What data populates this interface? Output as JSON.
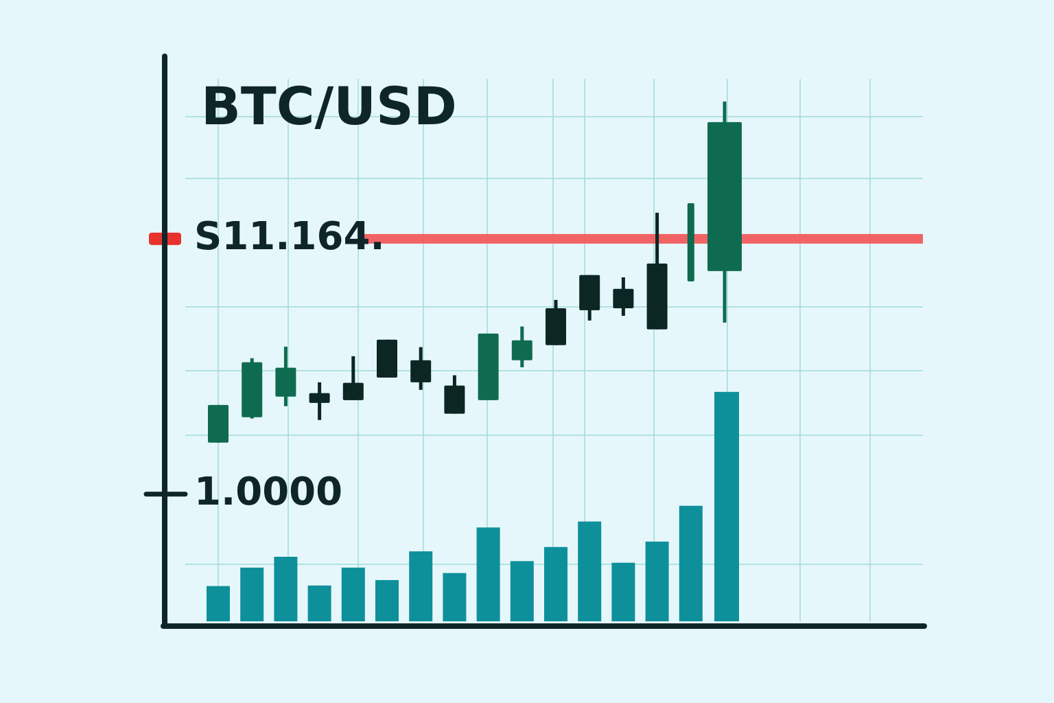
{
  "chart_data": {
    "type": "candlestick",
    "title": "BTC/USD",
    "categories": [
      null,
      null,
      null,
      null,
      null,
      null,
      null,
      null,
      null,
      null,
      null,
      null,
      null,
      null,
      null,
      null
    ],
    "series": [
      {
        "open": [
          3.05,
          4.06,
          4.88,
          5.02,
          5.43,
          7.15,
          6.33,
          5.32,
          4.74,
          6.33,
          8.4,
          9.72,
          9.17,
          10.18,
          9.47,
          9.88
        ],
        "high": [
          4.55,
          6.41,
          6.87,
          5.45,
          6.49,
          7.15,
          6.85,
          5.73,
          7.39,
          7.67,
          8.73,
          9.72,
          9.63,
          12.2,
          12.58,
          16.63
        ],
        "low": [
          3.05,
          4.01,
          4.5,
          3.95,
          4.74,
          5.64,
          5.15,
          4.2,
          4.74,
          6.05,
          6.93,
          7.91,
          8.1,
          7.56,
          9.47,
          7.83
        ],
        "close": [
          4.55,
          6.25,
          6.03,
          4.63,
          4.74,
          5.64,
          5.45,
          4.2,
          7.39,
          7.12,
          6.93,
          8.32,
          8.4,
          7.56,
          12.58,
          15.81
        ],
        "up_color": "#0f6b4f",
        "down_color": "#0b2623"
      },
      {
        "type": "bar",
        "axis": "y2",
        "color": "#0e909b",
        "values": [
          0.65,
          0.99,
          1.19,
          0.66,
          0.99,
          0.76,
          1.29,
          0.89,
          1.73,
          1.11,
          1.37,
          1.84,
          1.08,
          1.47,
          2.13,
          4.23
        ]
      }
    ],
    "ylim": [
      -4.2,
      17.5
    ],
    "yticks": [
      {
        "value": 11.164,
        "label": "S11.164."
      },
      {
        "value": 1,
        "label": "1.0000"
      }
    ],
    "y2lim": [
      0,
      10
    ],
    "reference_color": "#f25c5c",
    "grid": true
  }
}
